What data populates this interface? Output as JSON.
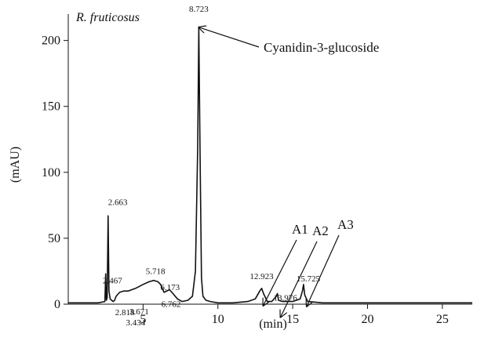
{
  "chart_data": {
    "type": "line",
    "title": "R. fruticosus",
    "xlabel": "(min)",
    "ylabel": "(mAU)",
    "xlim": [
      0,
      27
    ],
    "ylim": [
      0,
      220
    ],
    "x_ticks": [
      5,
      10,
      15,
      20,
      25
    ],
    "y_ticks": [
      0,
      50,
      100,
      150,
      200
    ],
    "grid": false,
    "series": [
      {
        "x": [
          0.0,
          1.0,
          2.0,
          2.45,
          2.5,
          2.55,
          2.6,
          2.663,
          2.72,
          2.8,
          2.9,
          3.0,
          3.1,
          3.2,
          3.434,
          3.7,
          4.0,
          4.5,
          5.0,
          5.4,
          5.718,
          6.0,
          6.173,
          6.4,
          6.762,
          7.0,
          7.3,
          7.6,
          8.0,
          8.3,
          8.5,
          8.65,
          8.723,
          8.8,
          8.9,
          9.0,
          9.2,
          9.5,
          10.0,
          11.0,
          12.0,
          12.5,
          12.8,
          12.923,
          13.05,
          13.3,
          13.6,
          13.9,
          13.976,
          14.05,
          14.3,
          15.0,
          15.5,
          15.65,
          15.725,
          15.8,
          16.0,
          17.0,
          19.0,
          22.0,
          25.0,
          27.0
        ],
        "y": [
          1,
          1,
          1,
          2,
          23,
          3,
          5,
          67,
          10,
          4,
          3,
          2,
          3,
          6,
          9,
          10,
          10,
          12,
          15,
          17,
          18,
          17,
          15,
          9,
          11,
          8,
          4,
          2,
          3,
          6,
          25,
          120,
          210,
          120,
          20,
          6,
          3,
          2,
          1,
          1,
          2,
          4,
          10,
          12,
          8,
          2,
          2,
          6,
          8,
          3,
          2,
          2,
          4,
          10,
          15,
          7,
          2,
          1,
          1,
          1,
          1,
          1
        ]
      }
    ],
    "peak_labels": [
      {
        "x": 2.663,
        "y": 67,
        "text": "2.663"
      },
      {
        "x": 2.467,
        "y": 23,
        "text": "2.467"
      },
      {
        "x": 2.818,
        "y": 12,
        "text": "2.818"
      },
      {
        "x": 3.434,
        "y": 9,
        "text": "3.434"
      },
      {
        "x": 3.671,
        "y": 10,
        "text": "3.671"
      },
      {
        "x": 5.718,
        "y": 18,
        "text": "5.718"
      },
      {
        "x": 6.173,
        "y": 15,
        "text": "6.173"
      },
      {
        "x": 6.762,
        "y": 11,
        "text": "6.762"
      },
      {
        "x": 8.723,
        "y": 210,
        "text": "8.723"
      },
      {
        "x": 12.923,
        "y": 12,
        "text": "12.923"
      },
      {
        "x": 13.976,
        "y": 8,
        "text": "13.976"
      },
      {
        "x": 15.725,
        "y": 15,
        "text": "15.725"
      }
    ],
    "annotations": [
      {
        "text": "Cyanidin-3-glucoside",
        "x": 8.723,
        "y": 210
      },
      {
        "text": "A1",
        "x": 12.923,
        "y": 12
      },
      {
        "text": "A2",
        "x": 13.976,
        "y": 8
      },
      {
        "text": "A3",
        "x": 15.725,
        "y": 15
      }
    ]
  }
}
